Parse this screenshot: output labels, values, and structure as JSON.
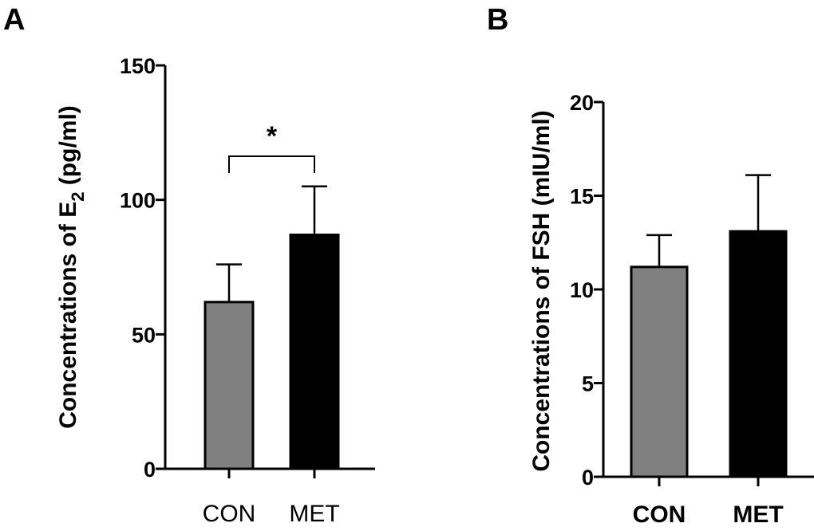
{
  "chart_data": [
    {
      "panel": "A",
      "type": "bar",
      "title": "",
      "xlabel": "",
      "ylabel_main": "Concentrations of E",
      "ylabel_sub": "2",
      "ylabel_unit": " (pg/ml)",
      "categories": [
        "CON",
        "MET"
      ],
      "values": [
        62,
        87
      ],
      "errors": [
        14,
        18
      ],
      "colors": [
        "#808080",
        "#000000"
      ],
      "ylim": [
        0,
        150
      ],
      "yticks": [
        0,
        50,
        100,
        150
      ],
      "annotations": [
        {
          "text": "*",
          "between": [
            "CON",
            "MET"
          ]
        }
      ]
    },
    {
      "panel": "B",
      "type": "bar",
      "title": "",
      "xlabel": "",
      "ylabel": "Concentrations of FSH (mIU/ml)",
      "categories": [
        "CON",
        "MET"
      ],
      "values": [
        11.2,
        13.1
      ],
      "errors": [
        1.7,
        3.0
      ],
      "colors": [
        "#808080",
        "#000000"
      ],
      "ylim": [
        0,
        20
      ],
      "yticks": [
        0,
        5,
        10,
        15,
        20
      ],
      "annotations": []
    }
  ]
}
